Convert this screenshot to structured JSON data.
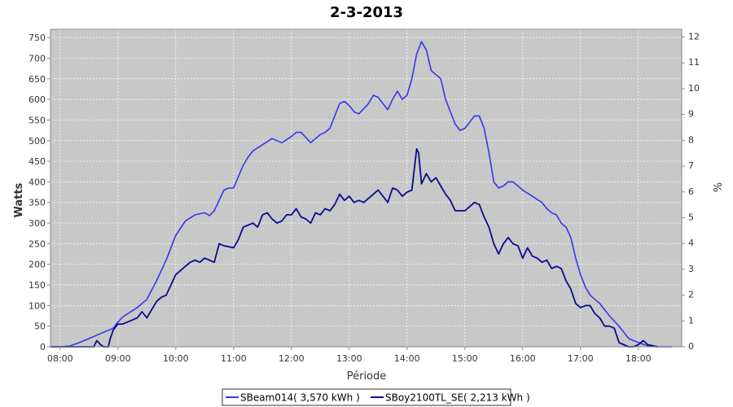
{
  "chart_data": {
    "type": "line",
    "title": "2-3-2013",
    "xlabel": "Période",
    "ylabel": "Watts",
    "y2label": "%",
    "xlim": [
      "07:50",
      "18:45"
    ],
    "ylim": [
      0,
      770
    ],
    "y2lim": [
      0,
      12.3
    ],
    "x_ticks": [
      "08:00",
      "09:00",
      "10:00",
      "11:00",
      "12:00",
      "13:00",
      "14:00",
      "15:00",
      "16:00",
      "17:00",
      "18:00"
    ],
    "y_ticks": [
      0,
      50,
      100,
      150,
      200,
      250,
      300,
      350,
      400,
      450,
      500,
      550,
      600,
      650,
      700,
      750
    ],
    "y2_ticks": [
      0,
      1,
      2,
      3,
      4,
      5,
      6,
      7,
      8,
      9,
      10,
      11,
      12
    ],
    "grid": true,
    "legend_position": "bottom",
    "plot_background": "#c8c8c8",
    "series": [
      {
        "name": "SBeam014( 3,570 kWh )",
        "color": "#3535f0",
        "x": [
          "07:50",
          "08:00",
          "08:10",
          "08:20",
          "08:30",
          "08:40",
          "08:45",
          "08:50",
          "08:55",
          "09:00",
          "09:05",
          "09:10",
          "09:20",
          "09:30",
          "09:40",
          "09:50",
          "10:00",
          "10:10",
          "10:20",
          "10:30",
          "10:35",
          "10:40",
          "10:50",
          "10:55",
          "11:00",
          "11:10",
          "11:15",
          "11:20",
          "11:30",
          "11:40",
          "11:50",
          "12:00",
          "12:05",
          "12:10",
          "12:20",
          "12:30",
          "12:35",
          "12:40",
          "12:50",
          "12:55",
          "13:00",
          "13:05",
          "13:10",
          "13:20",
          "13:25",
          "13:30",
          "13:40",
          "13:45",
          "13:50",
          "13:55",
          "14:00",
          "14:05",
          "14:10",
          "14:15",
          "14:20",
          "14:25",
          "14:30",
          "14:35",
          "14:40",
          "14:50",
          "14:55",
          "15:00",
          "15:10",
          "15:15",
          "15:20",
          "15:25",
          "15:30",
          "15:35",
          "15:40",
          "15:45",
          "15:50",
          "16:00",
          "16:10",
          "16:20",
          "16:25",
          "16:30",
          "16:35",
          "16:40",
          "16:45",
          "16:50",
          "16:55",
          "17:00",
          "17:05",
          "17:10",
          "17:15",
          "17:20",
          "17:30",
          "17:40",
          "17:45",
          "17:50",
          "18:00",
          "18:10",
          "18:20",
          "18:30",
          "18:35"
        ],
        "values": [
          0,
          0,
          2,
          10,
          20,
          30,
          35,
          40,
          45,
          60,
          72,
          80,
          95,
          115,
          160,
          210,
          270,
          305,
          320,
          325,
          318,
          330,
          380,
          385,
          385,
          440,
          460,
          475,
          490,
          505,
          495,
          510,
          520,
          520,
          495,
          515,
          520,
          530,
          590,
          595,
          585,
          570,
          565,
          590,
          610,
          605,
          575,
          600,
          620,
          600,
          610,
          650,
          710,
          740,
          720,
          670,
          660,
          650,
          600,
          540,
          525,
          530,
          560,
          560,
          530,
          470,
          400,
          385,
          390,
          400,
          400,
          380,
          365,
          350,
          335,
          325,
          320,
          300,
          290,
          265,
          215,
          175,
          145,
          125,
          115,
          105,
          75,
          50,
          35,
          20,
          10,
          2,
          0,
          0,
          0
        ]
      },
      {
        "name": "SBoy2100TL_SE( 2,213 kWh )",
        "color": "#0a0a90",
        "x": [
          "07:50",
          "08:35",
          "08:38",
          "08:42",
          "08:45",
          "08:50",
          "08:52",
          "08:55",
          "09:00",
          "09:05",
          "09:10",
          "09:20",
          "09:25",
          "09:30",
          "09:40",
          "09:45",
          "09:50",
          "10:00",
          "10:05",
          "10:10",
          "10:15",
          "10:20",
          "10:25",
          "10:30",
          "10:40",
          "10:45",
          "10:50",
          "11:00",
          "11:05",
          "11:10",
          "11:15",
          "11:20",
          "11:25",
          "11:30",
          "11:35",
          "11:40",
          "11:45",
          "11:50",
          "11:55",
          "12:00",
          "12:05",
          "12:10",
          "12:15",
          "12:20",
          "12:25",
          "12:30",
          "12:35",
          "12:40",
          "12:45",
          "12:50",
          "12:55",
          "13:00",
          "13:05",
          "13:10",
          "13:15",
          "13:20",
          "13:25",
          "13:30",
          "13:35",
          "13:40",
          "13:45",
          "13:50",
          "13:55",
          "14:00",
          "14:05",
          "14:10",
          "14:12",
          "14:15",
          "14:20",
          "14:25",
          "14:30",
          "14:35",
          "14:40",
          "14:45",
          "14:50",
          "15:00",
          "15:10",
          "15:15",
          "15:20",
          "15:25",
          "15:30",
          "15:35",
          "15:40",
          "15:45",
          "15:50",
          "15:55",
          "16:00",
          "16:05",
          "16:10",
          "16:15",
          "16:20",
          "16:25",
          "16:30",
          "16:35",
          "16:40",
          "16:45",
          "16:50",
          "16:55",
          "17:00",
          "17:05",
          "17:10",
          "17:15",
          "17:20",
          "17:25",
          "17:30",
          "17:35",
          "17:40",
          "17:45",
          "17:50",
          "17:55",
          "18:00",
          "18:05",
          "18:10",
          "18:20"
        ],
        "values": [
          0,
          0,
          15,
          5,
          0,
          0,
          20,
          40,
          55,
          55,
          60,
          70,
          85,
          70,
          110,
          120,
          125,
          175,
          185,
          195,
          205,
          210,
          205,
          215,
          205,
          250,
          245,
          240,
          260,
          290,
          295,
          300,
          290,
          320,
          325,
          310,
          300,
          305,
          320,
          320,
          335,
          315,
          310,
          300,
          325,
          320,
          335,
          330,
          345,
          370,
          355,
          365,
          350,
          355,
          350,
          360,
          370,
          380,
          365,
          350,
          385,
          380,
          365,
          375,
          380,
          480,
          470,
          395,
          420,
          400,
          410,
          390,
          370,
          355,
          330,
          330,
          350,
          345,
          315,
          290,
          250,
          225,
          250,
          265,
          250,
          245,
          215,
          240,
          220,
          215,
          205,
          210,
          190,
          195,
          190,
          160,
          140,
          105,
          95,
          100,
          100,
          80,
          70,
          50,
          50,
          45,
          10,
          5,
          0,
          0,
          5,
          15,
          5,
          0
        ]
      }
    ]
  }
}
